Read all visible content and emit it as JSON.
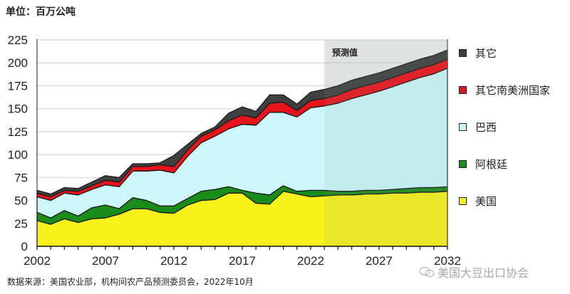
{
  "unit_label": "单位：百万公吨",
  "source_text": "数据来源：美国农业部，机构间农产品预测委员会，2022年10月",
  "watermark": "美国大豆出口协会",
  "forecast_label": "预测值",
  "legend": [
    {
      "label": "其它",
      "color": "#404040"
    },
    {
      "label": "其它南美洲国家",
      "color": "#e8141b"
    },
    {
      "label": "巴西",
      "color": "#ccf6fa"
    },
    {
      "label": "阿根廷",
      "color": "#1a8c1a"
    },
    {
      "label": "美国",
      "color": "#f7f31a"
    }
  ],
  "y_ticks": [
    "0",
    "25",
    "50",
    "75",
    "100",
    "125",
    "150",
    "175",
    "200",
    "225"
  ],
  "x_ticks": [
    "2002",
    "2007",
    "2012",
    "2017",
    "2022",
    "2027",
    "2032"
  ],
  "chart_data": {
    "type": "area",
    "stacked": true,
    "title": "",
    "unit": "百万公吨",
    "xlabel": "",
    "ylabel": "单位：百万公吨",
    "ylim": [
      0,
      225
    ],
    "xlim": [
      2002,
      2032
    ],
    "grid": "horizontal",
    "legend_position": "right",
    "forecast_region": {
      "start": 2023,
      "end": 2032,
      "label": "预测值"
    },
    "x": [
      2002,
      2003,
      2004,
      2005,
      2006,
      2007,
      2008,
      2009,
      2010,
      2011,
      2012,
      2013,
      2014,
      2015,
      2016,
      2017,
      2018,
      2019,
      2020,
      2021,
      2022,
      2023,
      2024,
      2025,
      2026,
      2027,
      2028,
      2029,
      2030,
      2031,
      2032
    ],
    "series": [
      {
        "name": "美国",
        "color": "#f7f31a",
        "values": [
          28,
          24,
          30,
          26,
          30,
          31,
          35,
          41,
          41,
          37,
          36,
          45,
          50,
          51,
          58,
          58,
          47,
          46,
          60,
          57,
          54,
          55,
          56,
          56,
          57,
          57,
          58,
          58,
          59,
          59,
          60
        ]
      },
      {
        "name": "阿根廷",
        "color": "#1a8c1a",
        "values": [
          9,
          7,
          9,
          7,
          12,
          14,
          6,
          12,
          9,
          7,
          8,
          7,
          10,
          11,
          7,
          3,
          11,
          10,
          6,
          3,
          7,
          6,
          4,
          4,
          4,
          4,
          4,
          5,
          5,
          5,
          5
        ]
      },
      {
        "name": "巴西",
        "color": "#ccf6fa",
        "values": [
          17,
          19,
          19,
          23,
          20,
          22,
          24,
          29,
          32,
          39,
          36,
          46,
          53,
          58,
          63,
          72,
          74,
          90,
          80,
          81,
          90,
          92,
          96,
          101,
          104,
          108,
          112,
          116,
          120,
          124,
          129
        ]
      },
      {
        "name": "其它南美洲国家",
        "color": "#e8141b",
        "values": [
          4,
          4,
          3,
          4,
          4,
          5,
          5,
          5,
          5,
          6,
          7,
          7,
          7,
          7,
          9,
          10,
          8,
          10,
          11,
          7,
          8,
          8,
          9,
          10,
          10,
          10,
          10,
          10,
          10,
          10,
          10
        ]
      },
      {
        "name": "其它",
        "color": "#404040",
        "values": [
          3,
          3,
          3,
          3,
          4,
          5,
          5,
          3,
          3,
          2,
          12,
          6,
          3,
          3,
          8,
          9,
          7,
          9,
          8,
          7,
          9,
          10,
          10,
          10,
          10,
          10,
          10,
          10,
          10,
          10,
          10
        ]
      }
    ]
  }
}
